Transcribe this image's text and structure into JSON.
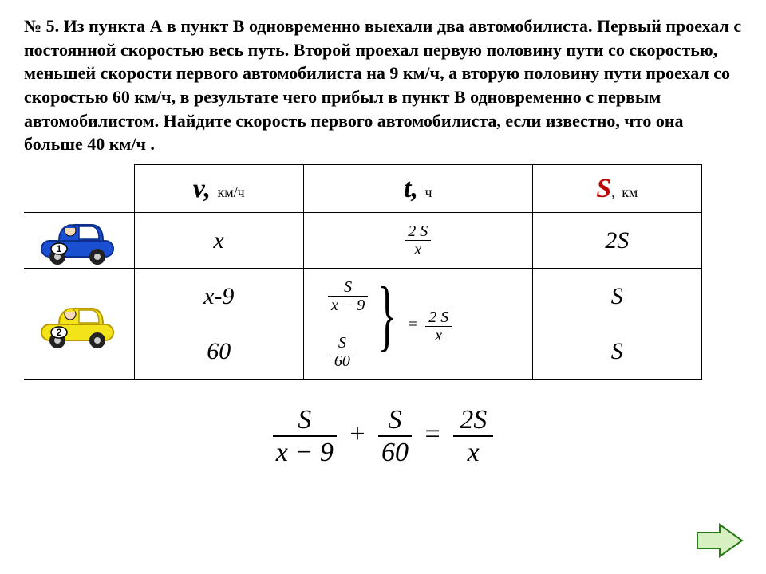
{
  "problem": {
    "number": "№ 5.",
    "text": "Из пункта А в пункт В одновременно выехали два автомобилиста. Первый проехал с постоянной скоростью весь путь. Второй проехал первую половину пути со скоростью, меньшей скорости первого автомобилиста на 9 км/ч, а вторую половину пути проехал со скоростью 60 км/ч, в результате чего прибыл в пункт В одновременно с первым автомобилистом. Найдите скорость первого автомобилиста, если известно, что она больше 40 км/ч ."
  },
  "table": {
    "headers": {
      "v": "v,",
      "v_unit": "км/ч",
      "t": "t,",
      "t_unit": "ч",
      "s": "S",
      "s_comma": ",",
      "s_unit": "км"
    },
    "row1": {
      "car_number": "1",
      "v": "x",
      "t_num": "2 S",
      "t_den": "x",
      "s": "2S"
    },
    "row2a": {
      "car_number": "2",
      "v": "x-9",
      "t_num": "S",
      "t_den": "x − 9",
      "s": "S"
    },
    "row2b": {
      "v": "60",
      "t_num": "S",
      "t_den": "60",
      "s": "S"
    },
    "row2_rhs_num": "2 S",
    "row2_rhs_den": "x"
  },
  "equation": {
    "f1_num": "S",
    "f1_den": "x − 9",
    "f2_num": "S",
    "f2_den": "60",
    "f3_num": "2S",
    "f3_den": "x",
    "plus": "+",
    "eq": "="
  },
  "colors": {
    "car1_body": "#1b4fd1",
    "car1_trim": "#0b2f8a",
    "car2_body": "#f3e41a",
    "car2_trim": "#b89800",
    "face": "#f8d9b8",
    "tire": "#222222",
    "arrow_fill": "#d7f0c2",
    "arrow_stroke": "#2a7a1a",
    "s_color": "#c00000"
  }
}
